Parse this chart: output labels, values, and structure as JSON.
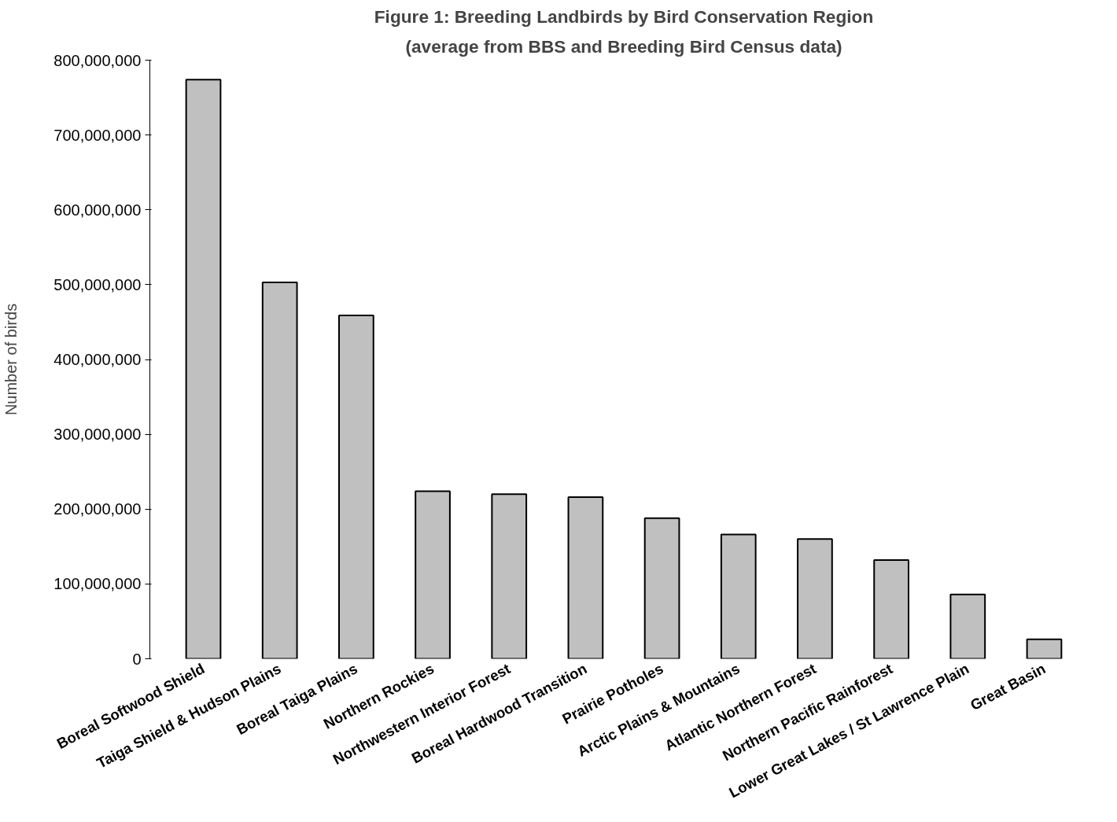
{
  "chart_data": {
    "type": "bar",
    "title": "Figure 1: Breeding Landbirds by Bird Conservation Region",
    "subtitle": "(average from BBS and Breeding Bird Census data)",
    "ylabel": "Number of birds",
    "categories": [
      "Boreal Softwood Shield",
      "Taiga Shield & Hudson Plains",
      "Boreal Taiga Plains",
      "Northern Rockies",
      "Northwestern Interior Forest",
      "Boreal Hardwood Transition",
      "Prairie Potholes",
      "Arctic Plains & Mountains",
      "Atlantic Northern Forest",
      "Northern Pacific Rainforest",
      "Lower Great Lakes / St Lawrence Plain",
      "Great Basin"
    ],
    "values": [
      774000000,
      503000000,
      459000000,
      224000000,
      220000000,
      216000000,
      188000000,
      166000000,
      160000000,
      132000000,
      86000000,
      26000000
    ],
    "color": "#c0c0c0",
    "ylim": [
      0,
      800000000
    ],
    "yticks": [
      {
        "value": 0,
        "label": "0"
      },
      {
        "value": 100000000,
        "label": "100,000,000"
      },
      {
        "value": 200000000,
        "label": "200,000,000"
      },
      {
        "value": 300000000,
        "label": "300,000,000"
      },
      {
        "value": 400000000,
        "label": "400,000,000"
      },
      {
        "value": 500000000,
        "label": "500,000,000"
      },
      {
        "value": 600000000,
        "label": "600,000,000"
      },
      {
        "value": 700000000,
        "label": "700,000,000"
      },
      {
        "value": 800000000,
        "label": "800,000,000"
      }
    ]
  }
}
